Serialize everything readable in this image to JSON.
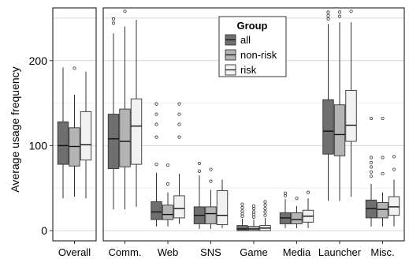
{
  "chart_data": {
    "type": "boxplot",
    "ylabel": "Average usage frequency",
    "yticks": [
      0,
      100,
      200
    ],
    "ylim": [
      -12,
      262
    ],
    "grid": true,
    "legend": {
      "title": "Group",
      "placement": "top-center",
      "entries": [
        "all",
        "non-risk",
        "risk"
      ]
    },
    "colors": {
      "all": "#6f6f6f",
      "non-risk": "#b4b4b4",
      "risk": "#f2f2f2"
    },
    "series": [
      "all",
      "non-risk",
      "risk"
    ],
    "panels": [
      {
        "name": "overall",
        "categories": [
          {
            "label": "Overall",
            "boxes": [
              {
                "group": "all",
                "whisker_low": 38,
                "q1": 78,
                "median": 100,
                "q3": 128,
                "whisker_high": 192,
                "outliers": []
              },
              {
                "group": "non-risk",
                "whisker_low": 40,
                "q1": 76,
                "median": 99,
                "q3": 121,
                "whisker_high": 160,
                "outliers": [
                  191
                ]
              },
              {
                "group": "risk",
                "whisker_low": 38,
                "q1": 83,
                "median": 101,
                "q3": 140,
                "whisker_high": 187,
                "outliers": []
              }
            ]
          }
        ]
      },
      {
        "name": "apps",
        "categories": [
          {
            "label": "Comm.",
            "boxes": [
              {
                "group": "all",
                "whisker_low": 25,
                "q1": 73,
                "median": 108,
                "q3": 137,
                "whisker_high": 232,
                "outliers": [
                  244,
                  249
                ]
              },
              {
                "group": "non-risk",
                "whisker_low": 25,
                "q1": 75,
                "median": 105,
                "q3": 143,
                "whisker_high": 240,
                "outliers": [
                  258
                ]
              },
              {
                "group": "risk",
                "whisker_low": 28,
                "q1": 78,
                "median": 123,
                "q3": 155,
                "whisker_high": 248,
                "outliers": []
              }
            ]
          },
          {
            "label": "Web",
            "boxes": [
              {
                "group": "all",
                "whisker_low": 5,
                "q1": 13,
                "median": 22,
                "q3": 34,
                "whisker_high": 68,
                "outliers": [
                  78,
                  110,
                  125,
                  137,
                  149
                ]
              },
              {
                "group": "non-risk",
                "whisker_low": 5,
                "q1": 13,
                "median": 19,
                "q3": 30,
                "whisker_high": 45,
                "outliers": [
                  55,
                  77
                ]
              },
              {
                "group": "risk",
                "whisker_low": 8,
                "q1": 15,
                "median": 26,
                "q3": 41,
                "whisker_high": 67,
                "outliers": [
                  110,
                  125,
                  137,
                  149
                ]
              }
            ]
          },
          {
            "label": "SNS",
            "boxes": [
              {
                "group": "all",
                "whisker_low": 2,
                "q1": 8,
                "median": 18,
                "q3": 28,
                "whisker_high": 65,
                "outliers": [
                  70,
                  79
                ]
              },
              {
                "group": "non-risk",
                "whisker_low": 2,
                "q1": 8,
                "median": 20,
                "q3": 28,
                "whisker_high": 48,
                "outliers": [
                  58,
                  72
                ]
              },
              {
                "group": "risk",
                "whisker_low": 3,
                "q1": 7,
                "median": 18,
                "q3": 47,
                "whisker_high": 60,
                "outliers": []
              }
            ]
          },
          {
            "label": "Game",
            "boxes": [
              {
                "group": "all",
                "whisker_low": 0,
                "q1": 0,
                "median": 2,
                "q3": 6,
                "whisker_high": 14,
                "outliers": [
                  17,
                  20,
                  23,
                  27,
                  31
                ]
              },
              {
                "group": "non-risk",
                "whisker_low": 0,
                "q1": 0,
                "median": 2,
                "q3": 5,
                "whisker_high": 13,
                "outliers": [
                  16,
                  19,
                  22,
                  26,
                  29
                ]
              },
              {
                "group": "risk",
                "whisker_low": 0,
                "q1": 0,
                "median": 3,
                "q3": 6,
                "whisker_high": 15,
                "outliers": [
                  18,
                  22,
                  26,
                  30,
                  34
                ]
              }
            ]
          },
          {
            "label": "Media",
            "boxes": [
              {
                "group": "all",
                "whisker_low": 3,
                "q1": 8,
                "median": 15,
                "q3": 21,
                "whisker_high": 37,
                "outliers": [
                  41,
                  44
                ]
              },
              {
                "group": "non-risk",
                "whisker_low": 3,
                "q1": 8,
                "median": 13,
                "q3": 21,
                "whisker_high": 29,
                "outliers": [
                  38
                ]
              },
              {
                "group": "risk",
                "whisker_low": 3,
                "q1": 10,
                "median": 17,
                "q3": 24,
                "whisker_high": 38,
                "outliers": [
                  45
                ]
              }
            ]
          },
          {
            "label": "Launcher",
            "boxes": [
              {
                "group": "all",
                "whisker_low": 35,
                "q1": 90,
                "median": 117,
                "q3": 154,
                "whisker_high": 243,
                "outliers": [
                  249,
                  253,
                  257
                ]
              },
              {
                "group": "non-risk",
                "whisker_low": 35,
                "q1": 88,
                "median": 113,
                "q3": 148,
                "whisker_high": 245,
                "outliers": [
                  252,
                  257
                ]
              },
              {
                "group": "risk",
                "whisker_low": 40,
                "q1": 105,
                "median": 124,
                "q3": 165,
                "whisker_high": 245,
                "outliers": [
                  258
                ]
              }
            ]
          },
          {
            "label": "Misc.",
            "boxes": [
              {
                "group": "all",
                "whisker_low": 5,
                "q1": 15,
                "median": 26,
                "q3": 36,
                "whisker_high": 55,
                "outliers": [
                  64,
                  69,
                  75,
                  80,
                  86,
                  132
                ]
              },
              {
                "group": "non-risk",
                "whisker_low": 5,
                "q1": 15,
                "median": 25,
                "q3": 33,
                "whisker_high": 45,
                "outliers": [
                  67,
                  86,
                  132
                ]
              },
              {
                "group": "risk",
                "whisker_low": 5,
                "q1": 18,
                "median": 28,
                "q3": 40,
                "whisker_high": 60,
                "outliers": [
                  72,
                  87
                ]
              }
            ]
          }
        ]
      }
    ]
  }
}
